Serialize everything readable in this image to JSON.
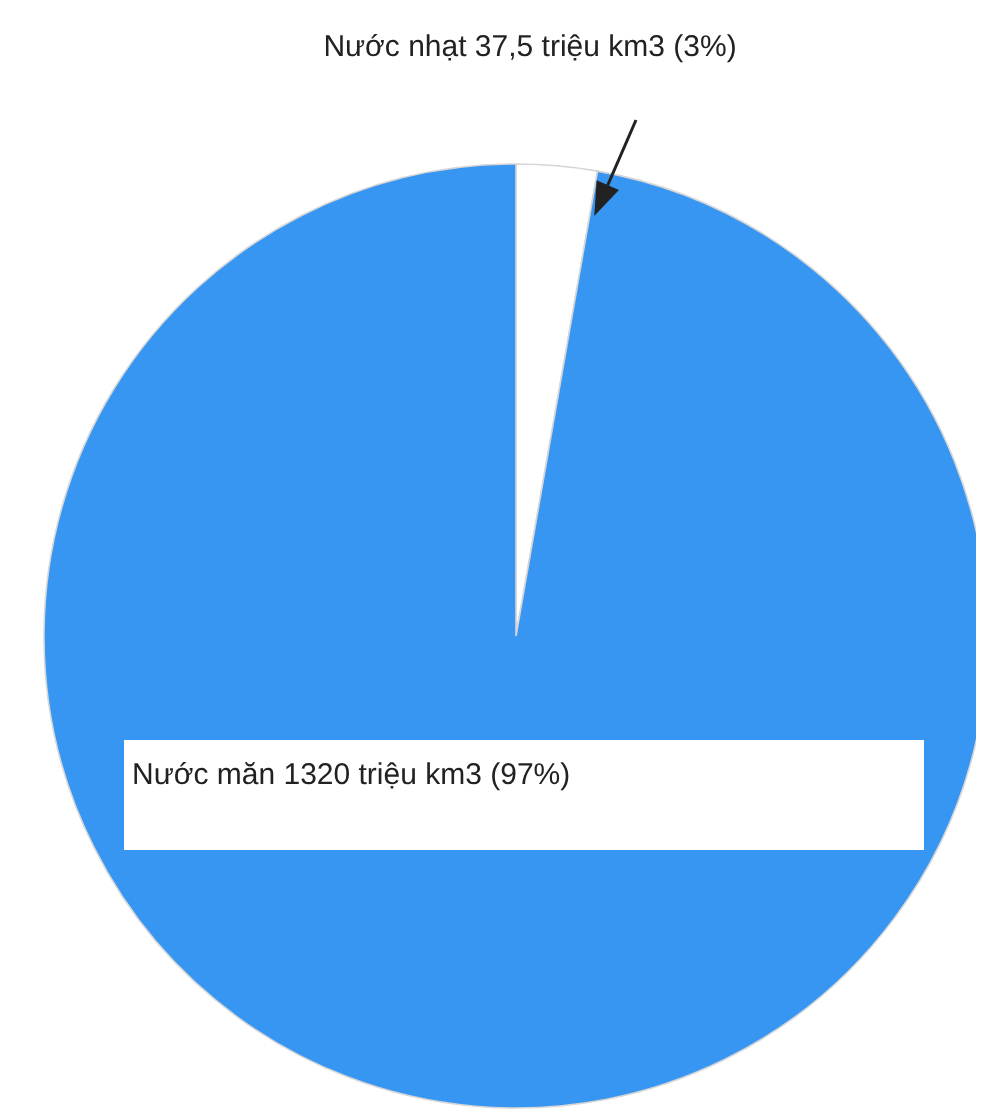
{
  "chart_data": {
    "type": "pie",
    "categories": [
      "Nước nhạt 37,5 triệu km3 (3%)",
      "Nước măn 1320 triệu km3 (97%)"
    ],
    "values": [
      37.5,
      1320
    ],
    "colors": [
      "#ffffff",
      "#3896f3"
    ]
  }
}
